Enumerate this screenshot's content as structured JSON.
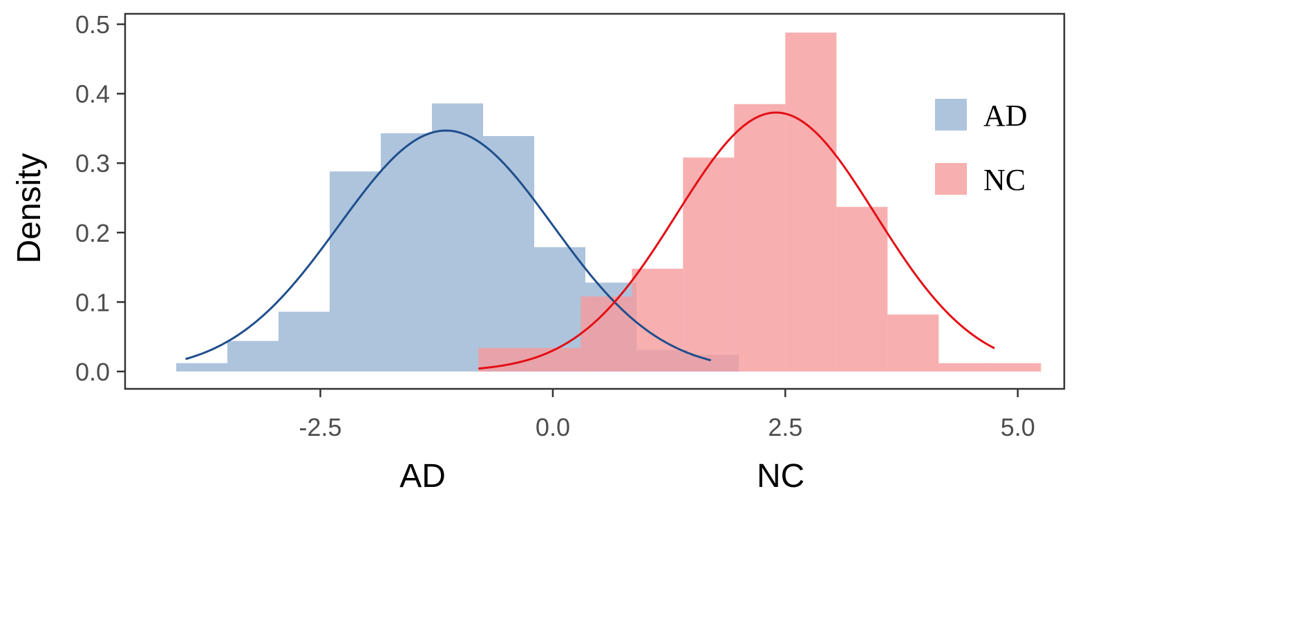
{
  "chart_data": {
    "type": "histogram",
    "ylabel": "Density",
    "xlim": [
      -4.6,
      5.5
    ],
    "ylim": [
      -0.025,
      0.515
    ],
    "x_ticks": [
      {
        "value": -2.5,
        "label": "-2.5"
      },
      {
        "value": 0.0,
        "label": "0.0"
      },
      {
        "value": 2.5,
        "label": "2.5"
      },
      {
        "value": 5.0,
        "label": "5.0"
      }
    ],
    "y_ticks": [
      {
        "value": 0.0,
        "label": "0.0"
      },
      {
        "value": 0.1,
        "label": "0.1"
      },
      {
        "value": 0.2,
        "label": "0.2"
      },
      {
        "value": 0.3,
        "label": "0.3"
      },
      {
        "value": 0.4,
        "label": "0.4"
      },
      {
        "value": 0.5,
        "label": "0.5"
      }
    ],
    "group_labels": [
      {
        "x": -1.4,
        "text": "AD"
      },
      {
        "x": 2.45,
        "text": "NC"
      }
    ],
    "legend": {
      "position": "right",
      "entries": [
        "AD",
        "NC"
      ]
    },
    "grid": false,
    "series": [
      {
        "name": "AD",
        "fill": "#9fbad6",
        "fill_opacity": 0.85,
        "line_color": "#1f4e8c",
        "bins": [
          {
            "x0": -4.05,
            "x1": -3.5,
            "y": 0.012
          },
          {
            "x0": -3.5,
            "x1": -2.95,
            "y": 0.044
          },
          {
            "x0": -2.95,
            "x1": -2.4,
            "y": 0.086
          },
          {
            "x0": -2.4,
            "x1": -1.85,
            "y": 0.288
          },
          {
            "x0": -1.85,
            "x1": -1.3,
            "y": 0.343
          },
          {
            "x0": -1.3,
            "x1": -0.75,
            "y": 0.386
          },
          {
            "x0": -0.75,
            "x1": -0.2,
            "y": 0.339
          },
          {
            "x0": -0.2,
            "x1": 0.35,
            "y": 0.179
          },
          {
            "x0": 0.35,
            "x1": 0.9,
            "y": 0.128
          },
          {
            "x0": 0.9,
            "x1": 1.45,
            "y": 0.031
          },
          {
            "x0": 1.45,
            "x1": 2.0,
            "y": 0.024
          }
        ],
        "density": {
          "mean": -1.15,
          "sd": 1.15,
          "x_range": [
            -3.95,
            1.7
          ]
        }
      },
      {
        "name": "NC",
        "fill": "#f59b9c",
        "fill_opacity": 0.8,
        "line_color": "#e30e15",
        "bins": [
          {
            "x0": -0.8,
            "x1": -0.25,
            "y": 0.034
          },
          {
            "x0": -0.25,
            "x1": 0.3,
            "y": 0.034
          },
          {
            "x0": 0.3,
            "x1": 0.85,
            "y": 0.108
          },
          {
            "x0": 0.85,
            "x1": 1.4,
            "y": 0.148
          },
          {
            "x0": 1.4,
            "x1": 1.95,
            "y": 0.308
          },
          {
            "x0": 1.95,
            "x1": 2.5,
            "y": 0.385
          },
          {
            "x0": 2.5,
            "x1": 3.05,
            "y": 0.488
          },
          {
            "x0": 3.05,
            "x1": 3.6,
            "y": 0.237
          },
          {
            "x0": 3.6,
            "x1": 4.15,
            "y": 0.082
          },
          {
            "x0": 4.15,
            "x1": 4.7,
            "y": 0.012
          },
          {
            "x0": 4.7,
            "x1": 5.25,
            "y": 0.012
          }
        ],
        "density": {
          "mean": 2.4,
          "sd": 1.07,
          "x_range": [
            -0.8,
            4.75
          ]
        }
      }
    ]
  }
}
